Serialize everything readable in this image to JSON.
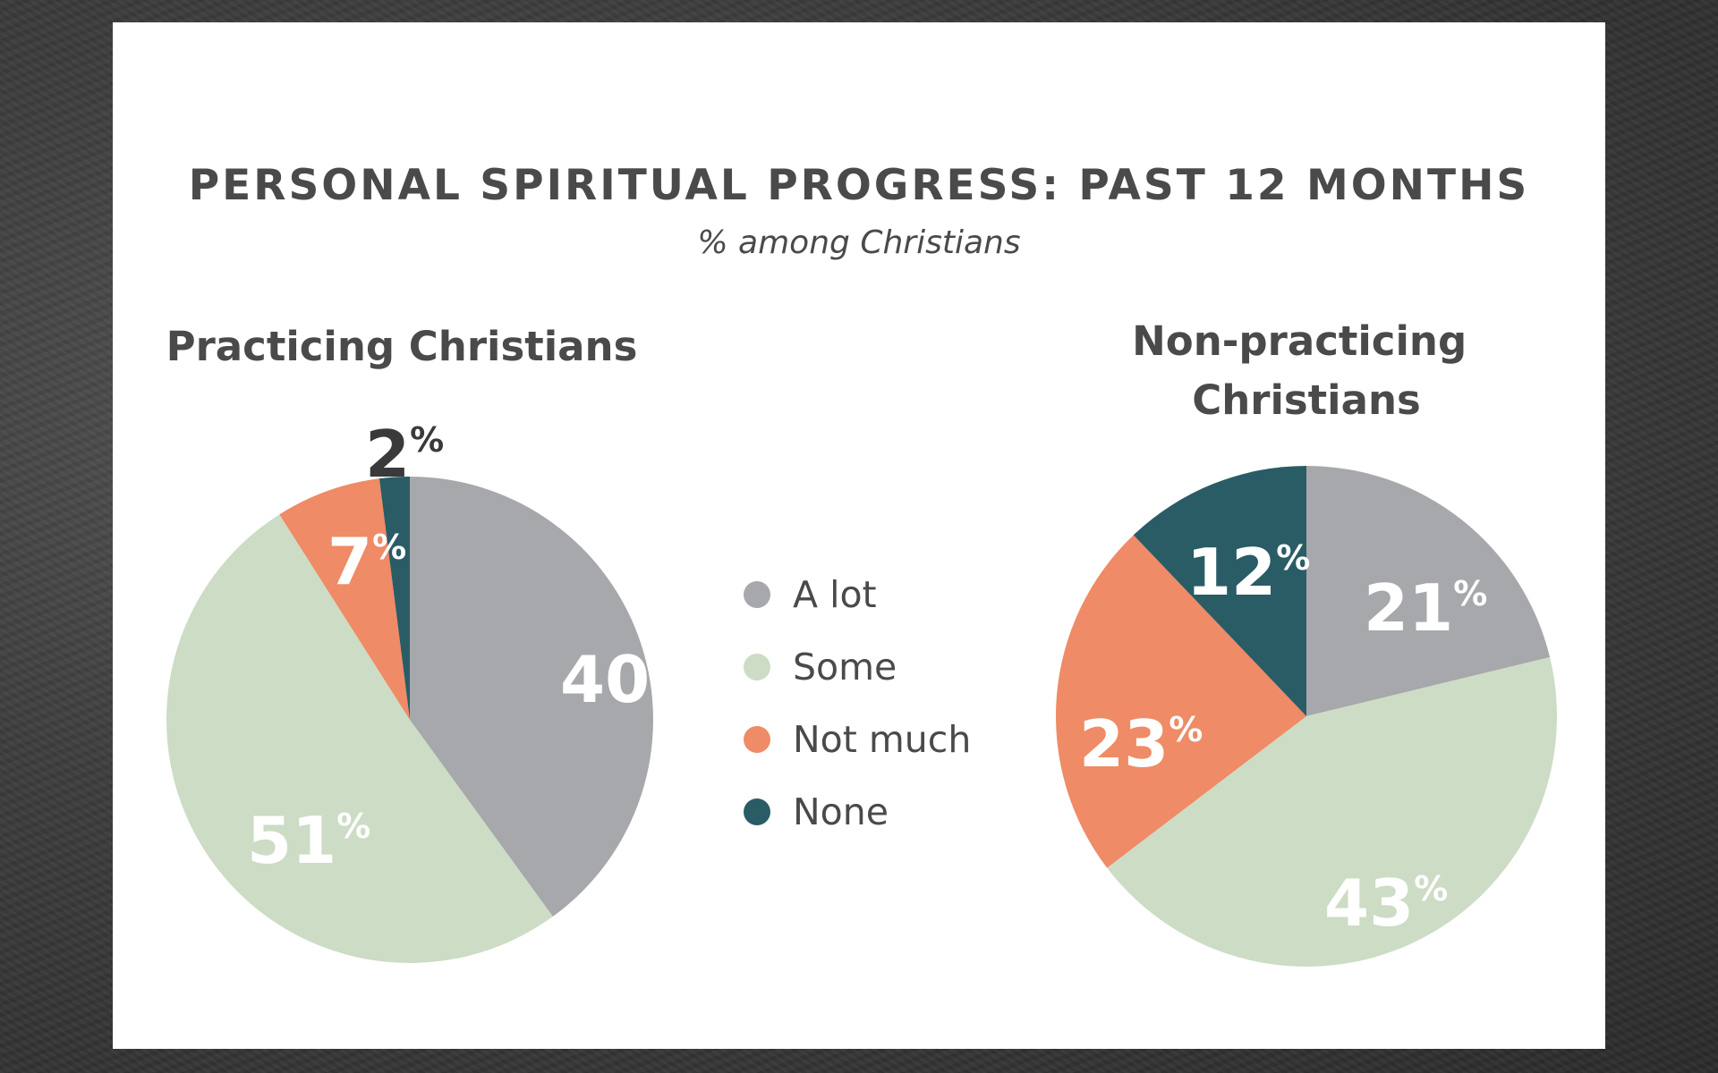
{
  "chart_data": {
    "title": "PERSONAL SPIRITUAL PROGRESS: PAST 12 MONTHS",
    "subtitle": "% among Christians",
    "legend": [
      {
        "label": "A lot",
        "color": "#a6a8ab"
      },
      {
        "label": "Some",
        "color": "#cddcc5"
      },
      {
        "label": "Not much",
        "color": "#ef8b66"
      },
      {
        "label": "None",
        "color": "#2a5c66"
      }
    ],
    "legend_placement": "center",
    "charts": [
      {
        "type": "pie",
        "title": "Practicing Christians",
        "categories": [
          "A lot",
          "Some",
          "Not much",
          "None"
        ],
        "values": [
          40,
          51,
          7,
          2
        ],
        "labels": [
          "40",
          "51",
          "7",
          "2"
        ]
      },
      {
        "type": "pie",
        "title": "Non-practicing Christians",
        "categories": [
          "A lot",
          "Some",
          "Not much",
          "None"
        ],
        "values": [
          21,
          43,
          23,
          12
        ],
        "labels": [
          "21",
          "43",
          "23",
          "12"
        ]
      }
    ],
    "percent_sign": "%"
  }
}
